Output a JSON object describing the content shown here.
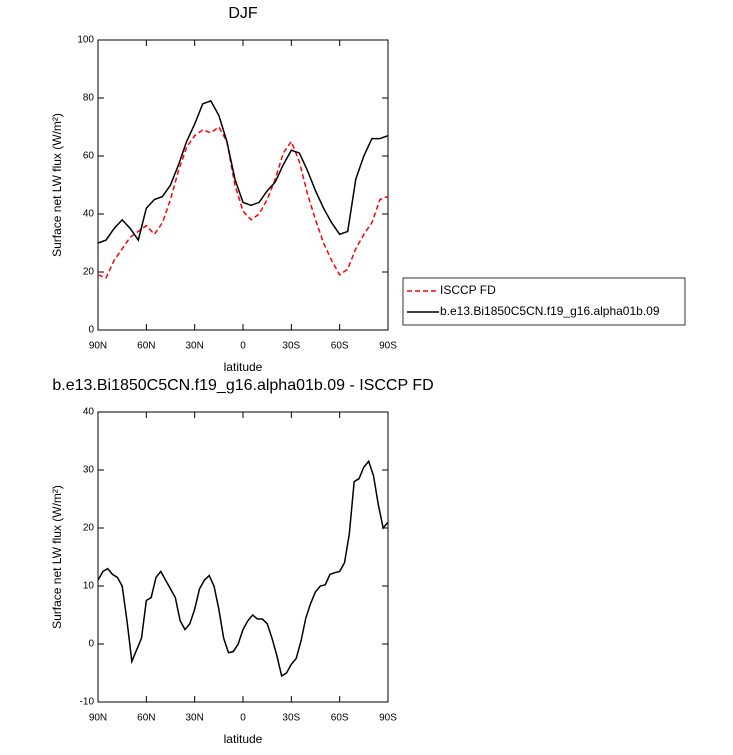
{
  "chart_data": [
    {
      "type": "line",
      "title": "DJF",
      "x_label": "latitude",
      "y_label": "Surface net LW flux (W/m²)",
      "x": [
        90,
        85,
        80,
        75,
        70,
        65,
        60,
        55,
        50,
        45,
        40,
        35,
        30,
        25,
        20,
        15,
        10,
        5,
        0,
        -5,
        -10,
        -15,
        -20,
        -25,
        -30,
        -35,
        -40,
        -45,
        -50,
        -55,
        -60,
        -65,
        -70,
        -75,
        -80,
        -85,
        -90
      ],
      "series": [
        {
          "name": "ISCCP FD",
          "color": "#ff0000",
          "dash": true,
          "values": [
            19,
            18,
            24,
            28,
            32,
            34,
            36,
            33,
            37,
            45,
            55,
            63,
            67,
            69,
            68,
            70,
            65,
            50,
            41,
            38,
            40,
            45,
            52,
            61,
            65,
            58,
            47,
            38,
            30,
            24,
            19,
            21,
            28,
            33,
            37,
            45,
            46
          ]
        },
        {
          "name": "b.e13.Bi1850C5CN.f19_g16.alpha01b.09",
          "color": "#000000",
          "dash": false,
          "values": [
            30,
            31,
            35,
            38,
            35,
            31,
            42,
            45,
            46,
            50,
            57,
            65,
            71,
            78,
            79,
            74,
            65,
            52,
            44,
            43,
            44,
            48,
            51,
            57,
            62,
            61,
            55,
            48,
            42,
            37,
            33,
            34,
            52,
            60,
            66,
            66,
            67
          ]
        }
      ],
      "xlim": [
        90,
        -90
      ],
      "xticks": [
        {
          "value": 90,
          "label": "90N"
        },
        {
          "value": 60,
          "label": "60N"
        },
        {
          "value": 30,
          "label": "30N"
        },
        0,
        {
          "value": -30,
          "label": "30S"
        },
        {
          "value": -60,
          "label": "60S"
        },
        {
          "value": -90,
          "label": "90S"
        }
      ],
      "ylim": [
        0,
        100
      ],
      "yticks": [
        0,
        20,
        40,
        60,
        80,
        100
      ],
      "legend": "outside-right"
    },
    {
      "type": "line",
      "title": "b.e13.Bi1850C5CN.f19_g16.alpha01b.09 - ISCCP FD",
      "x_label": "latitude",
      "y_label": "Surface net LW flux (W/m²)",
      "x": [
        90,
        87,
        84,
        81,
        78,
        75,
        72,
        69,
        66,
        63,
        60,
        57,
        54,
        51,
        48,
        45,
        42,
        39,
        36,
        33,
        30,
        27,
        24,
        21,
        18,
        15,
        12,
        9,
        6,
        3,
        0,
        -3,
        -6,
        -9,
        -12,
        -15,
        -18,
        -21,
        -24,
        -27,
        -30,
        -33,
        -36,
        -39,
        -42,
        -45,
        -48,
        -51,
        -54,
        -57,
        -60,
        -63,
        -66,
        -69,
        -72,
        -75,
        -78,
        -81,
        -84,
        -87,
        -90
      ],
      "series": [
        {
          "color": "#000000",
          "dash": false,
          "values": [
            11,
            12.5,
            13,
            12,
            11.5,
            10,
            4,
            -3,
            -1,
            1,
            7.5,
            8,
            11.5,
            12.5,
            11,
            9.5,
            8,
            4,
            2.5,
            3.5,
            6,
            9.5,
            11,
            11.8,
            10,
            6,
            1,
            -1.5,
            -1.3,
            0,
            2.5,
            4,
            5,
            4.3,
            4.3,
            3.5,
            1,
            -2,
            -5.5,
            -5,
            -3.5,
            -2.5,
            0.5,
            4.5,
            7,
            9,
            10,
            10.2,
            12,
            12.3,
            12.5,
            14,
            19,
            28,
            28.5,
            30.5,
            31.5,
            29,
            24,
            20,
            21
          ]
        }
      ],
      "xlim": [
        90,
        -90
      ],
      "xticks": [
        {
          "value": 90,
          "label": "90N"
        },
        {
          "value": 60,
          "label": "60N"
        },
        {
          "value": 30,
          "label": "30N"
        },
        0,
        {
          "value": -30,
          "label": "30S"
        },
        {
          "value": -60,
          "label": "60S"
        },
        {
          "value": -90,
          "label": "90S"
        }
      ],
      "ylim": [
        -10,
        40
      ],
      "yticks": [
        -10,
        0,
        10,
        20,
        30,
        40
      ]
    }
  ]
}
